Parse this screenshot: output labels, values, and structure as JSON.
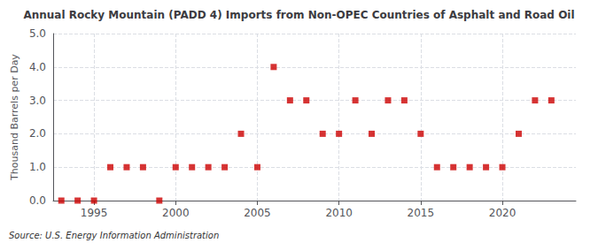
{
  "chart_data": {
    "type": "scatter",
    "title": "Annual Rocky Mountain (PADD 4) Imports from Non-OPEC Countries of Asphalt and Road Oil",
    "ylabel": "Thousand Barrels per Day",
    "annotation": "Source: U.S. Energy Information Administration",
    "x": [
      1993,
      1994,
      1995,
      1996,
      1997,
      1998,
      1999,
      2000,
      2001,
      2002,
      2003,
      2004,
      2005,
      2006,
      2007,
      2008,
      2009,
      2010,
      2011,
      2012,
      2013,
      2014,
      2015,
      2016,
      2017,
      2018,
      2019,
      2020,
      2021,
      2022,
      2023
    ],
    "values": [
      0,
      0,
      0,
      1,
      1,
      1,
      0,
      1,
      1,
      1,
      1,
      2,
      1,
      4,
      3,
      3,
      2,
      2,
      3,
      2,
      3,
      3,
      2,
      1,
      1,
      1,
      1,
      1,
      2,
      3,
      3
    ],
    "color": "#cc0000",
    "marker": "square",
    "xlim": [
      1992.5,
      2024.5
    ],
    "xticks": [
      1995,
      2000,
      2005,
      2010,
      2015,
      2020
    ],
    "ylim": [
      0,
      5.0
    ],
    "yticks": [
      {
        "value": 0.0,
        "label": "0.0"
      },
      {
        "value": 1.0,
        "label": "1.0"
      },
      {
        "value": 2.0,
        "label": "2.0"
      },
      {
        "value": 3.0,
        "label": "3.0"
      },
      {
        "value": 4.0,
        "label": "4.0"
      },
      {
        "value": 5.0,
        "label": "5.0"
      }
    ],
    "grid": true
  }
}
